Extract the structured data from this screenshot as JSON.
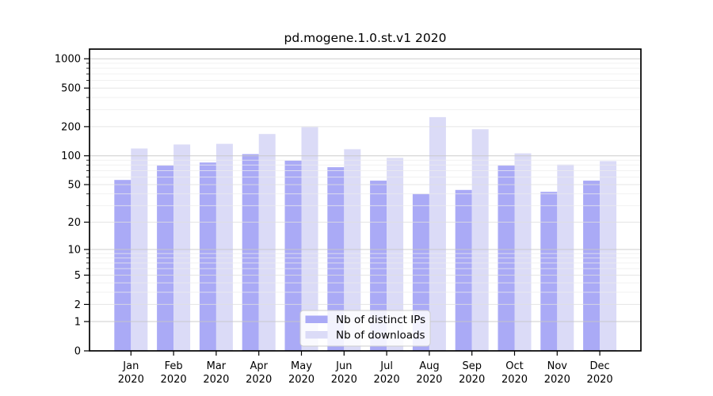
{
  "chart_data": {
    "type": "bar",
    "title": "pd.mogene.1.0.st.v1 2020",
    "categories": [
      "Jan",
      "Feb",
      "Mar",
      "Apr",
      "May",
      "Jun",
      "Jul",
      "Aug",
      "Sep",
      "Oct",
      "Nov",
      "Dec"
    ],
    "year_label": "2020",
    "series": [
      {
        "name": "Nb of distinct IPs",
        "color": "#aaaaf6",
        "values": [
          56,
          79,
          85,
          104,
          89,
          76,
          55,
          40,
          44,
          79,
          42,
          55
        ]
      },
      {
        "name": "Nb of downloads",
        "color": "#dbdbf7",
        "values": [
          119,
          131,
          133,
          168,
          198,
          117,
          95,
          251,
          188,
          106,
          81,
          88
        ]
      }
    ],
    "y_ticks": [
      0,
      1,
      2,
      5,
      10,
      20,
      50,
      100,
      200,
      500,
      1000
    ],
    "y_scale": "log1p",
    "ylim": [
      0,
      1259
    ],
    "xlabel": "",
    "ylabel": "",
    "grid": true,
    "legend_position": "bottom-center"
  },
  "colors": {
    "bar_distinct_ips": "#aaaaf6",
    "bar_downloads": "#dbdbf7",
    "grid_decade": "#c6c6c6",
    "grid_labeled": "#dedede",
    "grid_minor": "#ececec",
    "axis": "#000000",
    "legend_border": "#cccccc",
    "legend_background": "#ffffff"
  }
}
